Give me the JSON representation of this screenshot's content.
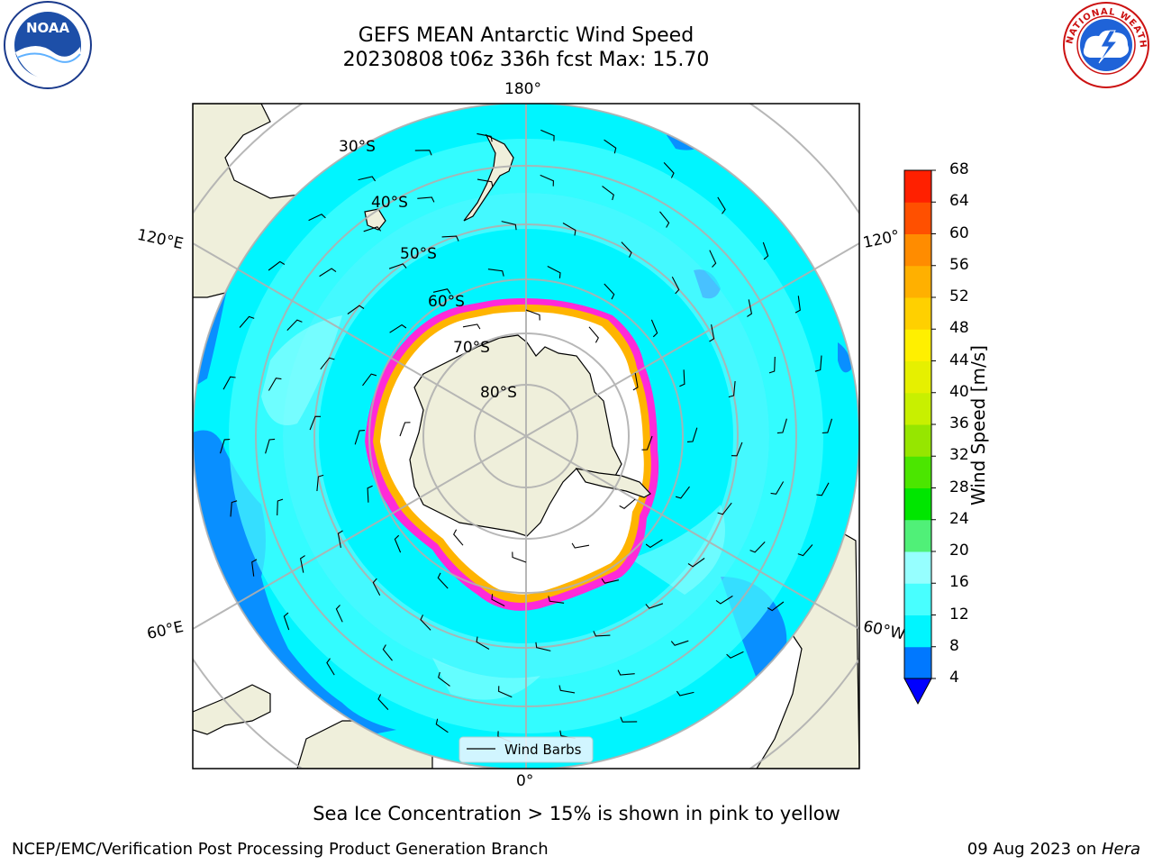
{
  "title": {
    "line1": "GEFS MEAN Antarctic Wind Speed",
    "line2": "20230808 t06z 336h fcst   Max: 15.70"
  },
  "logos": {
    "noara_text": "NOAA",
    "nws_text": "NATIONAL WEATHER SERVICE"
  },
  "map": {
    "projection": "south-polar-stereographic",
    "lon_labels": {
      "top": "180°",
      "bottom": "0°",
      "left_upper": "120°E",
      "left_lower": "60°E",
      "right_upper": "120°",
      "right_lower": "60°W"
    },
    "lat_labels": [
      "30°S",
      "40°S",
      "50°S",
      "60°S",
      "70°S",
      "80°S"
    ],
    "legend_label": "Wind Barbs",
    "colors": {
      "land": "#efefdb",
      "ocean_low": "#00f5ff",
      "ocean_mid": "#48ffff",
      "ocean_high": "#96ffff",
      "ocean_blue": "#0b7cff",
      "ice_pink": "#ff2ad8",
      "ice_yellow": "#ffb400"
    }
  },
  "colorbar": {
    "label": "Wind Speed [m/s]",
    "ticks": [
      "4",
      "8",
      "12",
      "16",
      "20",
      "24",
      "28",
      "32",
      "36",
      "40",
      "44",
      "48",
      "52",
      "56",
      "60",
      "64",
      "68"
    ],
    "colors": [
      "#0078ff",
      "#00f5ff",
      "#48ffff",
      "#96ffff",
      "#50f078",
      "#00e600",
      "#4be600",
      "#96e600",
      "#c8f000",
      "#e6f000",
      "#fff000",
      "#ffd000",
      "#ffb000",
      "#ff8c00",
      "#ff5000",
      "#ff2000"
    ]
  },
  "caption": "Sea Ice Concentration > 15% is shown in pink to yellow",
  "footer": {
    "left": "NCEP/EMC/Verification Post Processing Product Generation Branch",
    "date": "09 Aug 2023 on ",
    "machine": "Hera"
  }
}
